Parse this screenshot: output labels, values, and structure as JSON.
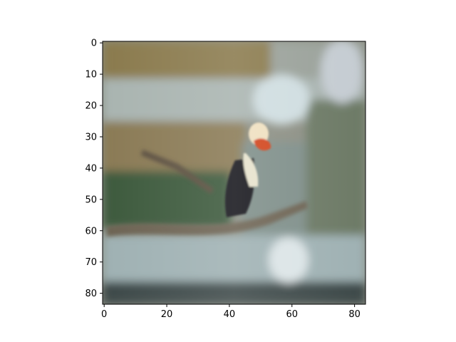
{
  "image": {
    "subject": "bird-on-branch-icon",
    "palette": {
      "canopy": "#8a7a4e",
      "haze": "#a9b4b0",
      "water": "#9fb1b3",
      "foliage": "#3e5a3c",
      "branch": "#6d6352",
      "bird_body": "#15151a",
      "bird_chest": "#e6e2cc",
      "bird_beak": "#d2441c",
      "bird_head": "#efe0c0"
    }
  },
  "axes": {
    "x_ticks": [
      0,
      20,
      40,
      60,
      80
    ],
    "y_ticks": [
      0,
      10,
      20,
      30,
      40,
      50,
      60,
      70,
      80
    ],
    "x_range": [
      -0.5,
      83.5
    ],
    "y_range": [
      -0.5,
      83.5
    ]
  }
}
